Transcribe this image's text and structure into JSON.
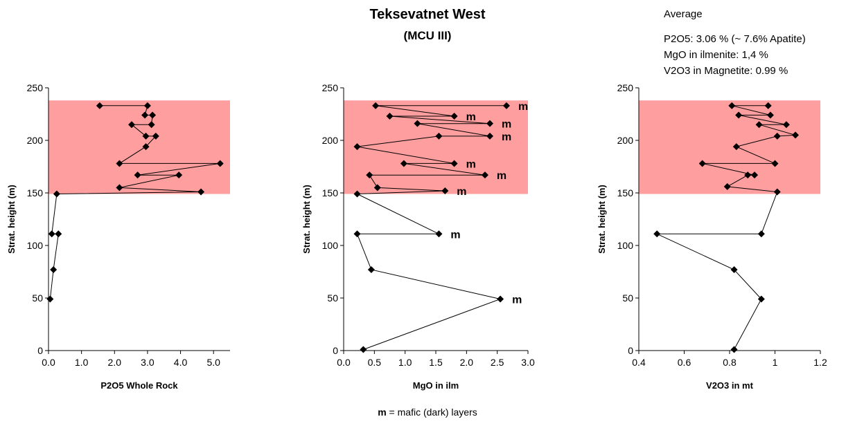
{
  "title": "Teksevatnet West",
  "subtitle": "(MCU III)",
  "average": {
    "heading": "Average",
    "lines": [
      "P2O5: 3.06 %  (~ 7.6% Apatite)",
      "MgO in ilmenite: 1,4 %",
      "V2O3 in Magnetite: 0.99 %"
    ]
  },
  "legend_note": {
    "symbol": "m",
    "text": " = mafic (dark) layers"
  },
  "colors": {
    "highlight_band": "#ff9e9e",
    "marker": "#000000",
    "line": "#000000"
  },
  "chart_data": [
    {
      "type": "line",
      "xlabel": "P2O5 Whole Rock",
      "ylabel": "Strat. height (m)",
      "xlim": [
        0,
        5.5
      ],
      "ylim": [
        0,
        250
      ],
      "xticks": [
        0.0,
        1.0,
        2.0,
        3.0,
        4.0,
        5.0
      ],
      "xtick_labels": [
        "0.0",
        "1.0",
        "2.0",
        "3.0",
        "4.0",
        "5.0"
      ],
      "yticks": [
        0,
        50,
        100,
        150,
        200,
        250
      ],
      "highlight_band": [
        149,
        238
      ],
      "x": [
        1.55,
        3.0,
        2.92,
        3.15,
        3.12,
        2.52,
        2.95,
        3.25,
        2.95,
        2.15,
        5.2,
        2.7,
        3.95,
        2.15,
        4.62,
        0.25,
        0.1,
        0.3,
        0.15,
        0.05
      ],
      "y": [
        233,
        233,
        224,
        224,
        215,
        215,
        204,
        204,
        194,
        178,
        178,
        167,
        167,
        155,
        151,
        149,
        111,
        111,
        77,
        49
      ],
      "annotations": []
    },
    {
      "type": "line",
      "xlabel": "MgO in ilm",
      "ylabel": "Strat. height (m)",
      "xlim": [
        0,
        3.0
      ],
      "ylim": [
        0,
        250
      ],
      "xticks": [
        0.0,
        0.5,
        1.0,
        1.5,
        2.0,
        2.5,
        3.0
      ],
      "xtick_labels": [
        "0.0",
        "0.5",
        "1.0",
        "1.5",
        "2.0",
        "2.5",
        "3.0"
      ],
      "yticks": [
        0,
        50,
        100,
        150,
        200,
        250
      ],
      "highlight_band": [
        149,
        238
      ],
      "x": [
        2.65,
        0.52,
        1.8,
        0.75,
        2.38,
        1.2,
        2.38,
        1.55,
        0.22,
        1.8,
        0.98,
        2.3,
        0.42,
        0.55,
        1.65,
        0.22,
        1.55,
        0.22,
        0.45,
        2.55,
        0.32
      ],
      "y": [
        233,
        233,
        223,
        223,
        216,
        216,
        204,
        204,
        194,
        178,
        178,
        167,
        167,
        155,
        152,
        149,
        111,
        111,
        77,
        49,
        1
      ],
      "annotations": [
        {
          "label": "m",
          "x": 2.65,
          "y": 233
        },
        {
          "label": "m",
          "x": 1.8,
          "y": 223
        },
        {
          "label": "m",
          "x": 2.38,
          "y": 216
        },
        {
          "label": "m",
          "x": 2.38,
          "y": 204
        },
        {
          "label": "m",
          "x": 1.8,
          "y": 178
        },
        {
          "label": "m",
          "x": 2.3,
          "y": 167
        },
        {
          "label": "m",
          "x": 1.65,
          "y": 152
        },
        {
          "label": "m",
          "x": 1.55,
          "y": 111
        },
        {
          "label": "m",
          "x": 2.55,
          "y": 49
        }
      ]
    },
    {
      "type": "line",
      "xlabel": "V2O3 in mt",
      "ylabel": "Strat. height (m)",
      "xlim": [
        0.4,
        1.2
      ],
      "ylim": [
        0,
        250
      ],
      "xticks": [
        0.4,
        0.6,
        0.8,
        1.0,
        1.2
      ],
      "xtick_labels": [
        "0.4",
        "0.6",
        "0.8",
        "1",
        "1.2"
      ],
      "yticks": [
        0,
        50,
        100,
        150,
        200,
        250
      ],
      "highlight_band": [
        149,
        238
      ],
      "x": [
        0.97,
        0.81,
        0.98,
        0.84,
        1.05,
        0.93,
        1.09,
        1.01,
        0.83,
        1.0,
        0.68,
        0.91,
        0.88,
        0.79,
        1.01,
        0.94,
        0.48,
        0.82,
        0.94,
        0.82
      ],
      "y": [
        233,
        233,
        224,
        224,
        215,
        215,
        205,
        204,
        194,
        178,
        178,
        167,
        167,
        156,
        151,
        111,
        111,
        77,
        49,
        1
      ],
      "annotations": []
    }
  ]
}
